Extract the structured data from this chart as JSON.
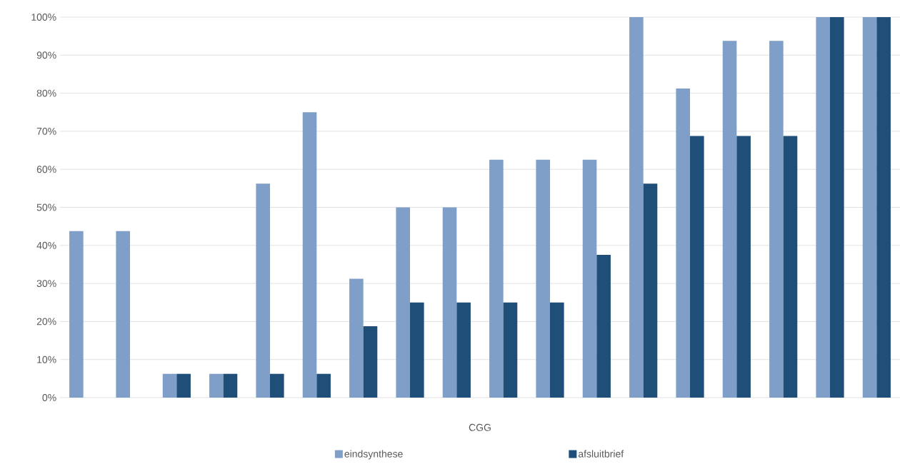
{
  "chart_data": {
    "type": "bar",
    "xlabel": "CGG",
    "categories": [
      null,
      null,
      null,
      null,
      null,
      null,
      null,
      null,
      null,
      null,
      null,
      null,
      null,
      null,
      null,
      null,
      null,
      null
    ],
    "series": [
      {
        "name": "eindsynthese",
        "color": "#7f9fc8",
        "values": [
          43.75,
          43.75,
          6.25,
          6.25,
          56.25,
          75,
          31.25,
          50,
          50,
          62.5,
          62.5,
          62.5,
          100,
          81.25,
          93.75,
          93.75,
          100,
          100
        ]
      },
      {
        "name": "afsluitbrief",
        "color": "#1f4e79",
        "values": [
          0,
          0,
          6.25,
          6.25,
          6.25,
          6.25,
          18.75,
          25,
          25,
          25,
          25,
          37.5,
          56.25,
          68.75,
          68.75,
          68.75,
          100,
          100
        ]
      }
    ],
    "ylim": [
      0,
      100
    ],
    "yticks": [
      {
        "value": 0,
        "label": "0%"
      },
      {
        "value": 10,
        "label": "10%"
      },
      {
        "value": 20,
        "label": "20%"
      },
      {
        "value": 30,
        "label": "30%"
      },
      {
        "value": 40,
        "label": "40%"
      },
      {
        "value": 50,
        "label": "50%"
      },
      {
        "value": 60,
        "label": "60%"
      },
      {
        "value": 70,
        "label": "70%"
      },
      {
        "value": 80,
        "label": "80%"
      },
      {
        "value": 90,
        "label": "90%"
      },
      {
        "value": 100,
        "label": "100%"
      }
    ],
    "grid": "y",
    "legend": "bottom"
  }
}
